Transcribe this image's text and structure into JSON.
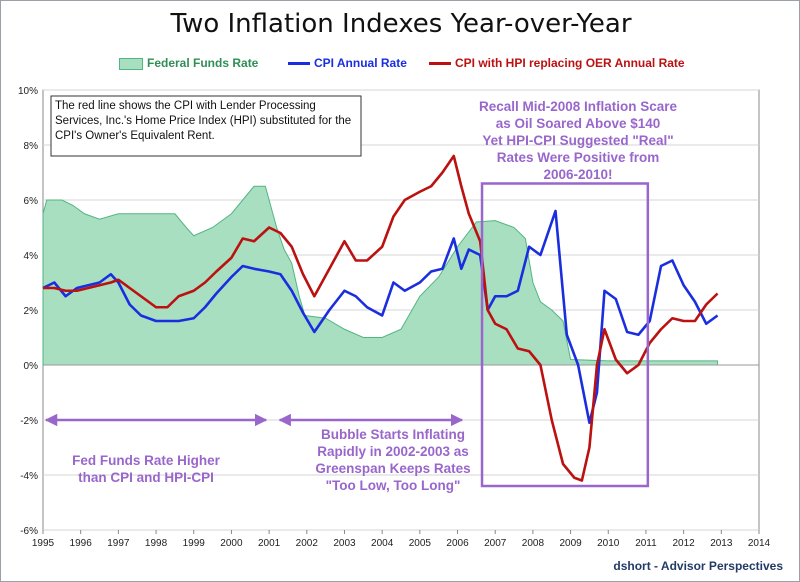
{
  "chart_data": {
    "type": "line",
    "title": "Two Inflation Indexes Year-over-Year",
    "xlabel": "",
    "ylabel": "",
    "xlim": [
      1995,
      2014
    ],
    "ylim": [
      -6,
      10
    ],
    "x_ticks": [
      "1995",
      "1996",
      "1997",
      "1998",
      "1999",
      "2000",
      "2001",
      "2002",
      "2003",
      "2004",
      "2005",
      "2006",
      "2007",
      "2008",
      "2009",
      "2010",
      "2011",
      "2012",
      "2013",
      "2014"
    ],
    "y_ticks": [
      "10%",
      "8%",
      "6%",
      "4%",
      "2%",
      "0%",
      "-2%",
      "-4%",
      "-6%"
    ],
    "legend": {
      "position": "top"
    },
    "series": [
      {
        "name": "Federal Funds Rate",
        "kind": "area",
        "color": "#a8dfc0",
        "edge": "#52b582",
        "x": [
          1995,
          1995.1,
          1995.5,
          1995.8,
          1996.1,
          1996.5,
          1997,
          1997.5,
          1998,
          1998.5,
          1998.8,
          1999,
          1999.5,
          2000,
          2000.3,
          2000.6,
          2000.9,
          2001,
          2001.2,
          2001.4,
          2001.6,
          2001.8,
          2001.95,
          2002.5,
          2003,
          2003.5,
          2004,
          2004.5,
          2005,
          2005.5,
          2006,
          2006.5,
          2007,
          2007.5,
          2007.8,
          2008,
          2008.2,
          2008.5,
          2008.8,
          2009,
          2010,
          2011,
          2012,
          2012.9
        ],
        "y": [
          5.5,
          6.0,
          6.0,
          5.8,
          5.5,
          5.3,
          5.5,
          5.5,
          5.5,
          5.5,
          5.0,
          4.7,
          5.0,
          5.5,
          6.0,
          6.5,
          6.5,
          6.0,
          5.0,
          4.2,
          3.7,
          2.5,
          1.8,
          1.7,
          1.3,
          1.0,
          1.0,
          1.3,
          2.5,
          3.2,
          4.3,
          5.2,
          5.25,
          5.0,
          4.6,
          3.0,
          2.3,
          2.0,
          1.6,
          0.2,
          0.15,
          0.15,
          0.15,
          0.15
        ]
      },
      {
        "name": "CPI Annual Rate",
        "kind": "line",
        "color": "#1a2ee0",
        "x": [
          1995,
          1995.3,
          1995.6,
          1995.9,
          1996.2,
          1996.5,
          1996.8,
          1997,
          1997.3,
          1997.6,
          1998,
          1998.3,
          1998.6,
          1999,
          1999.3,
          1999.6,
          2000,
          2000.3,
          2000.6,
          2001,
          2001.3,
          2001.6,
          2001.9,
          2002.2,
          2002.6,
          2003,
          2003.3,
          2003.6,
          2004,
          2004.3,
          2004.6,
          2005,
          2005.3,
          2005.6,
          2005.9,
          2006.1,
          2006.3,
          2006.6,
          2006.8,
          2007,
          2007.3,
          2007.6,
          2007.9,
          2008.2,
          2008.6,
          2008.9,
          2009.2,
          2009.5,
          2009.7,
          2009.9,
          2010.2,
          2010.5,
          2010.8,
          2011.1,
          2011.4,
          2011.7,
          2012,
          2012.3,
          2012.6,
          2012.9
        ],
        "y": [
          2.8,
          3.0,
          2.5,
          2.8,
          2.9,
          3.0,
          3.3,
          3.0,
          2.2,
          1.8,
          1.6,
          1.6,
          1.6,
          1.7,
          2.1,
          2.6,
          3.2,
          3.6,
          3.5,
          3.4,
          3.3,
          2.7,
          1.9,
          1.2,
          2.0,
          2.7,
          2.5,
          2.1,
          1.8,
          3.0,
          2.7,
          3.0,
          3.4,
          3.5,
          4.6,
          3.5,
          4.2,
          4.0,
          2.0,
          2.5,
          2.5,
          2.7,
          4.3,
          4.0,
          5.6,
          1.1,
          0.0,
          -2.1,
          -1.0,
          2.7,
          2.4,
          1.2,
          1.1,
          1.6,
          3.6,
          3.8,
          2.9,
          2.3,
          1.5,
          1.8
        ]
      },
      {
        "name": "CPI with HPI replacing OER Annual Rate",
        "kind": "line",
        "color": "#bb1111",
        "x": [
          1995,
          1995.3,
          1995.6,
          1995.9,
          1996.2,
          1996.5,
          1996.8,
          1997,
          1997.3,
          1997.6,
          1998,
          1998.3,
          1998.6,
          1999,
          1999.3,
          1999.6,
          2000,
          2000.3,
          2000.6,
          2001,
          2001.3,
          2001.6,
          2001.9,
          2002.2,
          2002.6,
          2003,
          2003.3,
          2003.6,
          2004,
          2004.3,
          2004.6,
          2005,
          2005.3,
          2005.6,
          2005.9,
          2006.1,
          2006.3,
          2006.6,
          2006.8,
          2007,
          2007.3,
          2007.6,
          2007.9,
          2008.2,
          2008.5,
          2008.8,
          2009.1,
          2009.3,
          2009.5,
          2009.7,
          2009.9,
          2010.2,
          2010.5,
          2010.8,
          2011.1,
          2011.4,
          2011.7,
          2012,
          2012.3,
          2012.6,
          2012.9
        ],
        "y": [
          2.8,
          2.8,
          2.7,
          2.7,
          2.8,
          2.9,
          3.0,
          3.1,
          2.8,
          2.5,
          2.1,
          2.1,
          2.5,
          2.7,
          3.0,
          3.4,
          3.9,
          4.6,
          4.5,
          5.0,
          4.8,
          4.3,
          3.3,
          2.5,
          3.5,
          4.5,
          3.8,
          3.8,
          4.3,
          5.4,
          6.0,
          6.3,
          6.5,
          7.0,
          7.6,
          6.5,
          5.5,
          4.5,
          2.0,
          1.5,
          1.3,
          0.6,
          0.5,
          0.0,
          -2.0,
          -3.6,
          -4.1,
          -4.2,
          -3.0,
          0.0,
          1.3,
          0.2,
          -0.3,
          0.0,
          0.8,
          1.3,
          1.7,
          1.6,
          1.6,
          2.2,
          2.6
        ]
      }
    ],
    "annotations": {
      "textbox": "The red line shows the CPI with Lender Processing Services, Inc.'s  Home Price Index (HPI) substituted for the CPI's Owner's Equivalent Rent.",
      "recall": [
        "Recall Mid-2008 Inflation Scare",
        "as Oil Soared Above $140",
        "Yet HPI-CPI Suggested \"Real\"",
        "Rates Were Positive from",
        "2006-2010!"
      ],
      "fed_higher": [
        "Fed Funds Rate Higher",
        "than CPI and HPI-CPI"
      ],
      "bubble": [
        "Bubble Starts Inflating",
        "Rapidly in 2002-2003 as",
        "Greenspan Keeps Rates",
        "\"Too Low, Too Long\""
      ],
      "arrow1": {
        "from": 1995,
        "to": 2001
      },
      "arrow2": {
        "from": 2001.2,
        "to": 2006.2
      },
      "recall_box": {
        "x_from": 2006.65,
        "x_to": 2011.05,
        "y_from": -4.4,
        "y_to": 6.6
      }
    },
    "credit": "dshort - Advisor Perspectives"
  }
}
